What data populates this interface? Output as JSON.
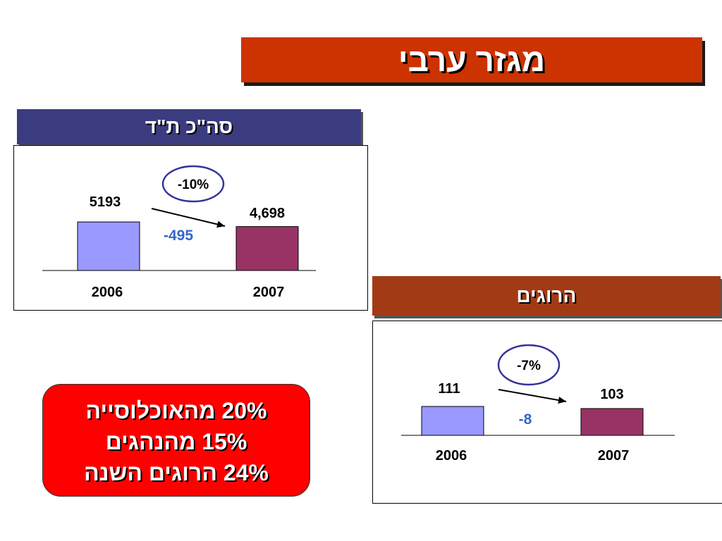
{
  "title": "מגזר ערבי",
  "colors": {
    "title_bg": "#cc3300",
    "left_header_bg": "#3b3b80",
    "right_header_bg": "#a33a16",
    "bar_2006": "#9999ff",
    "bar_2007": "#993366",
    "change_value": "#3366cc",
    "ellipse_stroke": "#333399",
    "stat_box_bg": "#ff0000"
  },
  "stats": [
    "20% מהאוכלוסייה",
    "15% מהנהגים",
    "24% הרוגים השנה"
  ],
  "chart_data": [
    {
      "type": "bar",
      "title": "סה\"כ ת\"ד",
      "categories": [
        "2006",
        "2007"
      ],
      "values": [
        5193,
        4698
      ],
      "value_labels": [
        "5193",
        "4,698"
      ],
      "change_label": "-495",
      "percent_change_label": "-10%",
      "ylim": [
        0,
        5500
      ]
    },
    {
      "type": "bar",
      "title": "הרוגים",
      "categories": [
        "2006",
        "2007"
      ],
      "values": [
        111,
        103
      ],
      "value_labels": [
        "111",
        "103"
      ],
      "change_label": "-8",
      "percent_change_label": "-7%",
      "ylim": [
        0,
        111
      ]
    }
  ]
}
